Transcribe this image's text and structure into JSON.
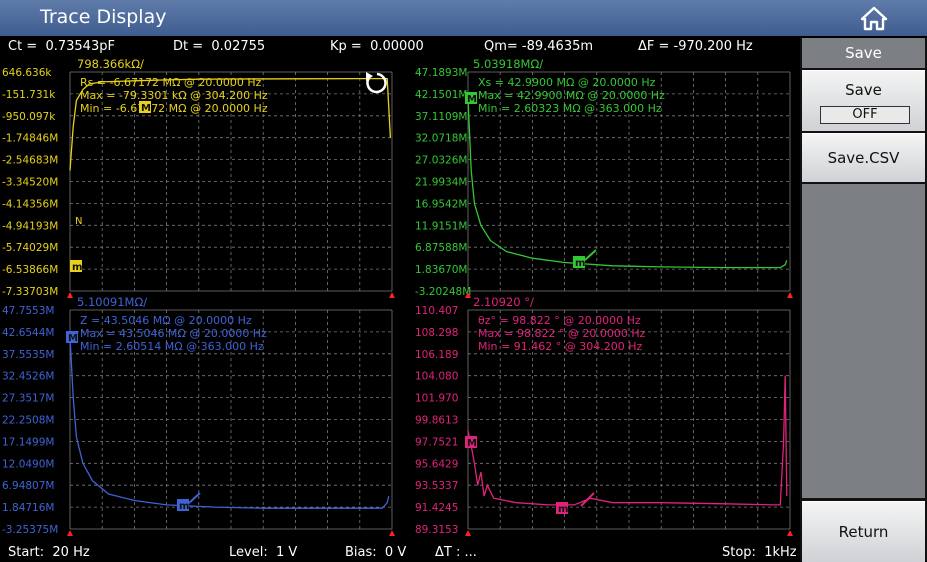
{
  "title": "Trace Display",
  "home_icon": "home-icon",
  "status": {
    "ct": "Ct =  0.73543pF",
    "dt": "Dt =  0.02755",
    "kp": "Kp =  0.00000",
    "qm": "Qm= -89.4635m",
    "df": "ΔF = -970.200 Hz"
  },
  "footer": {
    "start": "Start:  20 Hz",
    "level": "Level:  1 V",
    "bias": "Bias:  0 V",
    "dt": "ΔT : ...",
    "stop": "Stop:  1kHz"
  },
  "side_menu": {
    "header": "Save",
    "save_label": "Save",
    "save_state": "OFF",
    "save_csv": "Save.CSV",
    "return": "Return"
  },
  "colors": {
    "grid": "#7a7a7a",
    "panel1": "#e6d21a",
    "panel2": "#34c734",
    "panel3": "#3f63d6",
    "panel4": "#e0237a",
    "marker_red": "#ff2020"
  },
  "panels": [
    {
      "id": "panel1",
      "color": "#e6d21a",
      "scale": "798.366kΩ/",
      "ylabels": [
        "646.636k",
        "-151.731k",
        "-950.097k",
        "-1.74846M",
        "-2.54683M",
        "-3.34520M",
        "-4.14356M",
        "-4.94193M",
        "-5.74029M",
        "-6.53866M",
        "-7.33703M"
      ],
      "info": [
        "Rs    = -6.67172  MΩ @  20.0000   Hz",
        "Max = -79.3301  kΩ @  304.200   Hz",
        "Min  = -6.67172  MΩ @  20.0000   Hz"
      ],
      "trace": [
        [
          0,
          0.45
        ],
        [
          0.01,
          0.25
        ],
        [
          0.02,
          0.13
        ],
        [
          0.04,
          0.08
        ],
        [
          0.06,
          0.055
        ],
        [
          0.1,
          0.045
        ],
        [
          0.2,
          0.04
        ],
        [
          0.3,
          0.036
        ],
        [
          0.4,
          0.033
        ],
        [
          0.5,
          0.032
        ],
        [
          0.7,
          0.031
        ],
        [
          0.9,
          0.03
        ],
        [
          0.97,
          0.03
        ],
        [
          0.985,
          0.03
        ],
        [
          0.995,
          0.3
        ]
      ],
      "marker_labels": [
        "M",
        "N",
        "m"
      ],
      "trace_label": "N"
    },
    {
      "id": "panel2",
      "color": "#34c734",
      "scale": "5.03918MΩ/",
      "ylabels": [
        "47.1893M",
        "42.1501M",
        "37.1109M",
        "32.0718M",
        "27.0326M",
        "21.9934M",
        "16.9542M",
        "11.9151M",
        "6.87588M",
        "1.83670M",
        "-3.20248M"
      ],
      "info": [
        "Xs    =  42.9900  MΩ @  20.0000   Hz",
        "Max =  42.9900  MΩ @  20.0000   Hz",
        "Min  =  2.60323  MΩ @  363.000   Hz"
      ],
      "trace": [
        [
          0,
          0.12
        ],
        [
          0.01,
          0.45
        ],
        [
          0.02,
          0.6
        ],
        [
          0.04,
          0.7
        ],
        [
          0.07,
          0.77
        ],
        [
          0.12,
          0.82
        ],
        [
          0.2,
          0.85
        ],
        [
          0.3,
          0.87
        ],
        [
          0.45,
          0.885
        ],
        [
          0.6,
          0.89
        ],
        [
          0.8,
          0.893
        ],
        [
          0.97,
          0.893
        ],
        [
          0.985,
          0.88
        ],
        [
          0.99,
          0.86
        ]
      ],
      "marker_labels": [
        "M",
        "m"
      ]
    },
    {
      "id": "panel3",
      "color": "#3f63d6",
      "scale": "5.10091MΩ/",
      "ylabels": [
        "47.7553M",
        "42.6544M",
        "37.5535M",
        "32.4526M",
        "27.3517M",
        "22.2508M",
        "17.1499M",
        "12.0490M",
        "6.94807M",
        "1.84716M",
        "-3.25375M"
      ],
      "info": [
        "Z      =  43.5046  MΩ @  20.0000   Hz",
        "Max =  43.5046  MΩ @  20.0000   Hz",
        "Min  =  2.60514  MΩ @  363.000   Hz"
      ],
      "trace": [
        [
          0,
          0.12
        ],
        [
          0.01,
          0.4
        ],
        [
          0.02,
          0.58
        ],
        [
          0.04,
          0.7
        ],
        [
          0.07,
          0.78
        ],
        [
          0.12,
          0.84
        ],
        [
          0.2,
          0.87
        ],
        [
          0.3,
          0.89
        ],
        [
          0.45,
          0.9
        ],
        [
          0.6,
          0.905
        ],
        [
          0.8,
          0.905
        ],
        [
          0.97,
          0.905
        ],
        [
          0.985,
          0.88
        ],
        [
          0.99,
          0.85
        ]
      ],
      "marker_labels": [
        "M",
        "m"
      ]
    },
    {
      "id": "panel4",
      "color": "#e0237a",
      "scale": "2.10920 °/",
      "ylabels": [
        "110.407",
        "108.298",
        "106.189",
        "104.080",
        "101.970",
        "99.8613",
        "97.7521",
        "95.6429",
        "93.5337",
        "91.4245",
        "89.3153"
      ],
      "info": [
        "θz°   =   98.822        °  @   20.0000   Hz",
        "Max  =   98.822        °  @   20.0000   Hz",
        "Min   =   91.462        °  @   304.200   Hz"
      ],
      "trace": [
        [
          0,
          0.55
        ],
        [
          0.01,
          0.62
        ],
        [
          0.02,
          0.7
        ],
        [
          0.03,
          0.8
        ],
        [
          0.04,
          0.74
        ],
        [
          0.05,
          0.85
        ],
        [
          0.06,
          0.8
        ],
        [
          0.08,
          0.86
        ],
        [
          0.15,
          0.88
        ],
        [
          0.25,
          0.89
        ],
        [
          0.33,
          0.89
        ],
        [
          0.38,
          0.86
        ],
        [
          0.45,
          0.88
        ],
        [
          0.6,
          0.88
        ],
        [
          0.8,
          0.885
        ],
        [
          0.95,
          0.89
        ],
        [
          0.97,
          0.89
        ],
        [
          0.98,
          0.6
        ],
        [
          0.985,
          0.3
        ],
        [
          0.99,
          0.85
        ]
      ],
      "marker_labels": [
        "M",
        "m"
      ]
    }
  ]
}
